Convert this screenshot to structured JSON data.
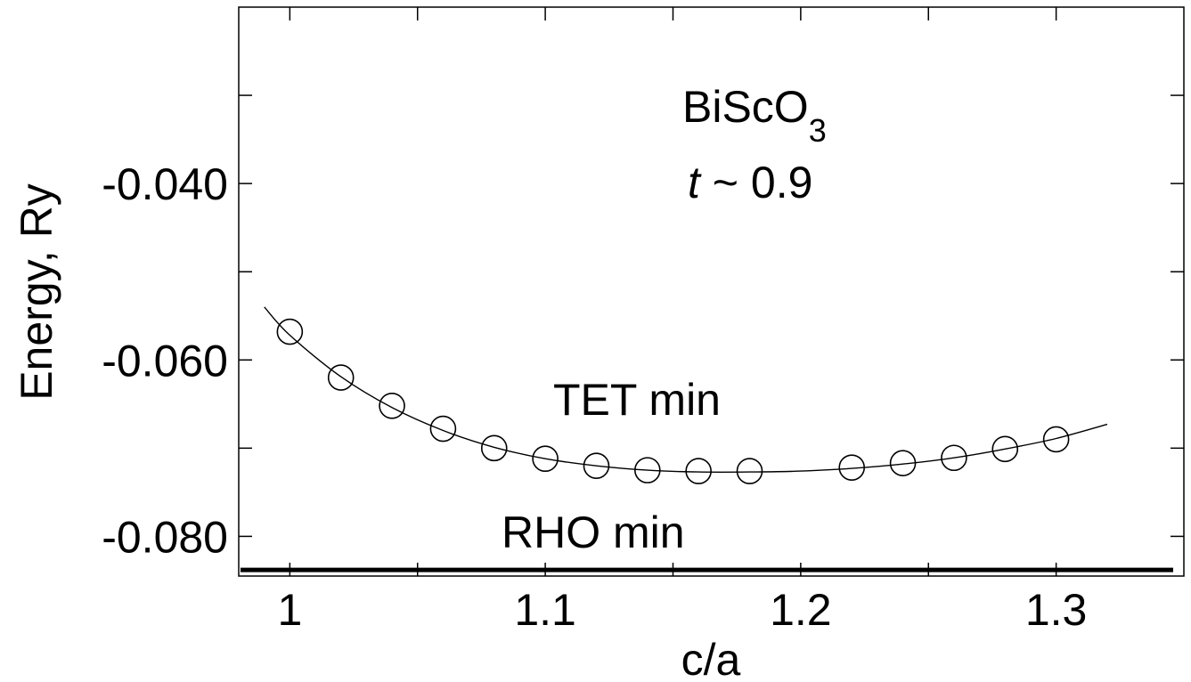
{
  "chart_data": {
    "type": "scatter",
    "title": "",
    "xlabel": "c/a",
    "ylabel": "Energy, Ry",
    "xlim": [
      0.98,
      1.35
    ],
    "ylim": [
      -0.0845,
      -0.02
    ],
    "x_ticks": [
      1,
      1.1,
      1.2,
      1.3
    ],
    "x_tick_labels": [
      "1",
      "1.1",
      "1.2",
      "1.3"
    ],
    "x_minor_ticks": [
      1.05,
      1.15,
      1.25
    ],
    "y_ticks": [
      -0.08,
      -0.06,
      -0.04
    ],
    "y_tick_labels": [
      "-0.080",
      "-0.060",
      "-0.040"
    ],
    "y_minor_ticks": [
      -0.07,
      -0.05,
      -0.03
    ],
    "grid": false,
    "series": [
      {
        "marker": "open-circle",
        "x": [
          1.0,
          1.02,
          1.04,
          1.06,
          1.08,
          1.1,
          1.12,
          1.14,
          1.16,
          1.18,
          1.22,
          1.24,
          1.26,
          1.28,
          1.3
        ],
        "y": [
          -0.0568,
          -0.062,
          -0.0652,
          -0.0678,
          -0.07,
          -0.0712,
          -0.072,
          -0.0725,
          -0.0726,
          -0.0726,
          -0.0722,
          -0.0717,
          -0.0711,
          -0.0701,
          -0.069
        ]
      }
    ],
    "fit_curve": {
      "x": [
        0.99,
        1.0,
        1.02,
        1.04,
        1.06,
        1.08,
        1.1,
        1.12,
        1.14,
        1.16,
        1.18,
        1.2,
        1.22,
        1.24,
        1.26,
        1.28,
        1.3,
        1.32
      ],
      "y": [
        -0.054,
        -0.0572,
        -0.0619,
        -0.0654,
        -0.068,
        -0.0699,
        -0.0712,
        -0.072,
        -0.0725,
        -0.0727,
        -0.0727,
        -0.0726,
        -0.0723,
        -0.0718,
        -0.0711,
        -0.0701,
        -0.0689,
        -0.0673
      ]
    },
    "reference_line": {
      "y": -0.0838,
      "x_range": [
        0.98,
        1.35
      ],
      "label": "RHO min"
    },
    "annotations": {
      "compound_main": "BiScO",
      "compound_sub": "3",
      "tolerance_symbol": "t",
      "tolerance_rest": " ~ 0.9",
      "tet_label": "TET min"
    }
  }
}
